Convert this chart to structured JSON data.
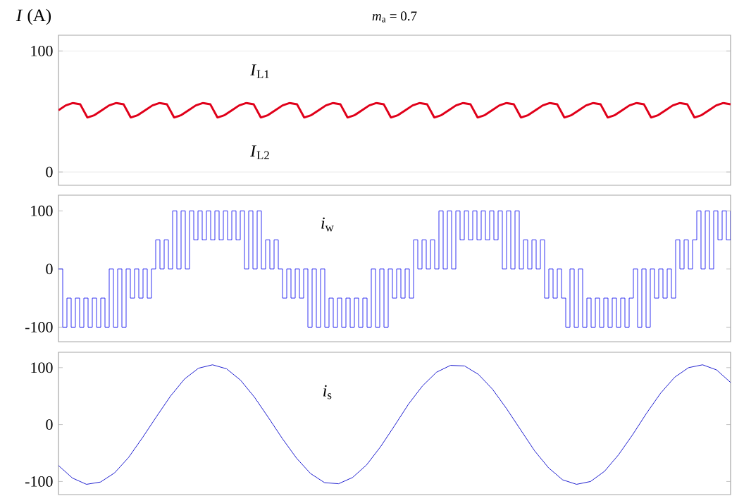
{
  "chart_data": [
    {
      "type": "line",
      "title": "*m*$_{a}$ = 0.7",
      "ylabel": "*I* (A)",
      "ylim": [
        -11,
        113
      ],
      "yticks": [
        0,
        100
      ],
      "grid": "y",
      "annotations": [
        "*I*$_{L1}$",
        "*I*$_{L2}$"
      ],
      "categories": [
        null,
        null,
        null,
        null,
        null,
        null,
        null,
        null,
        null,
        null,
        null,
        null,
        null,
        null,
        null,
        null,
        null,
        null,
        null,
        null,
        null,
        null,
        null,
        null,
        null,
        null,
        null,
        null,
        null,
        null,
        null,
        null,
        null,
        null,
        null,
        null,
        null,
        null,
        null,
        null,
        null,
        null,
        null,
        null,
        null,
        null,
        null,
        null,
        null,
        null,
        null,
        null,
        null,
        null,
        null,
        null,
        null,
        null,
        null,
        null,
        null,
        null,
        null,
        null,
        null,
        null,
        null,
        null,
        null,
        null,
        null,
        null,
        null,
        null,
        null,
        null,
        null,
        null,
        null,
        null,
        null,
        null,
        null,
        null,
        null,
        null,
        null,
        null,
        null,
        null,
        null,
        null,
        null,
        null
      ],
      "series": [
        {
          "color": "#e0001a",
          "values": [
            51,
            55,
            57,
            56,
            45,
            47,
            51,
            55,
            57,
            56,
            45,
            47,
            51,
            55,
            57,
            56,
            45,
            47,
            51,
            55,
            57,
            56,
            45,
            47,
            51,
            55,
            57,
            56,
            45,
            47,
            51,
            55,
            57,
            56,
            45,
            47,
            51,
            55,
            57,
            56,
            45,
            47,
            51,
            55,
            57,
            56,
            45,
            47,
            51,
            55,
            57,
            56,
            45,
            47,
            51,
            55,
            57,
            56,
            45,
            47,
            51,
            55,
            57,
            56,
            45,
            47,
            51,
            55,
            57,
            56,
            45,
            47,
            51,
            55,
            57,
            56,
            45,
            47,
            51,
            55,
            57,
            56,
            45,
            47,
            51,
            55,
            57,
            56,
            45,
            47,
            51,
            55,
            57,
            56
          ]
        }
      ]
    },
    {
      "type": "step",
      "ylim": [
        -125,
        127
      ],
      "yticks": [
        -100,
        0,
        100
      ],
      "annotations": [
        "*i*$_{w}$"
      ],
      "categories": [
        null,
        null,
        null,
        null,
        null,
        null,
        null,
        null,
        null,
        null,
        null,
        null,
        null,
        null,
        null,
        null,
        null,
        null,
        null,
        null,
        null,
        null,
        null,
        null,
        null,
        null,
        null,
        null,
        null,
        null,
        null,
        null,
        null,
        null,
        null,
        null,
        null,
        null,
        null,
        null,
        null,
        null,
        null,
        null,
        null,
        null,
        null,
        null,
        null,
        null,
        null,
        null,
        null,
        null,
        null,
        null,
        null,
        null,
        null,
        null,
        null,
        null,
        null,
        null,
        null,
        null,
        null,
        null,
        null,
        null,
        null,
        null,
        null,
        null,
        null,
        null,
        null,
        null,
        null,
        null,
        null,
        null,
        null,
        null,
        null,
        null,
        null,
        null,
        null,
        null,
        null,
        null,
        null,
        null,
        null,
        null,
        null,
        null,
        null,
        null,
        null,
        null,
        null,
        null,
        null,
        null,
        null,
        null,
        null,
        null,
        null,
        null,
        null,
        null,
        null,
        null,
        null,
        null,
        null,
        null,
        null,
        null,
        null,
        null,
        null,
        null,
        null,
        null,
        null,
        null,
        null,
        null,
        null,
        null,
        null,
        null,
        null,
        null,
        null,
        null,
        null,
        null,
        null,
        null,
        null,
        null,
        null,
        null,
        null,
        null,
        null,
        null,
        null,
        null,
        null,
        null,
        null,
        null,
        null,
        null
      ],
      "series": [
        {
          "color": "#0000ee",
          "values": [
            0,
            -100,
            -50,
            -100,
            -50,
            -100,
            -50,
            -100,
            -50,
            -100,
            -50,
            -100,
            0,
            -100,
            0,
            -100,
            0,
            -50,
            0,
            -50,
            0,
            -50,
            0,
            50,
            0,
            50,
            0,
            100,
            0,
            100,
            0,
            100,
            50,
            100,
            50,
            100,
            50,
            100,
            50,
            100,
            50,
            100,
            50,
            100,
            0,
            100,
            0,
            100,
            0,
            50,
            0,
            50,
            0,
            -50,
            0,
            -50,
            0,
            -50,
            0,
            -100,
            0,
            -100,
            0,
            -100,
            -50,
            -100,
            -50,
            -100,
            -50,
            -100,
            -50,
            -100,
            -50,
            -100,
            0,
            -100,
            0,
            -100,
            0,
            -50,
            0,
            -50,
            0,
            -50,
            50,
            0,
            50,
            0,
            50,
            0,
            100,
            0,
            100,
            0,
            100,
            50,
            100,
            50,
            100,
            50,
            100,
            50,
            100,
            50,
            100,
            0,
            100,
            0,
            100,
            0,
            50,
            0,
            50,
            0,
            50,
            -50,
            0,
            -50,
            0,
            -50,
            -100,
            0,
            -100,
            0,
            -100,
            -50,
            -100,
            -50,
            -100,
            -50,
            -100,
            -50,
            -100,
            -50,
            -100,
            -50,
            0,
            -100,
            0,
            -100,
            0,
            -50,
            0,
            -50,
            0,
            -50,
            50,
            0,
            50,
            0,
            50,
            100,
            0,
            100,
            0,
            100,
            50,
            100,
            50,
            100
          ]
        }
      ]
    },
    {
      "type": "line",
      "ylim": [
        -123,
        127
      ],
      "yticks": [
        -100,
        0,
        100
      ],
      "annotations": [
        "*i*$_{s}$"
      ],
      "categories": [
        null,
        null,
        null,
        null,
        null,
        null,
        null,
        null,
        null,
        null,
        null,
        null,
        null,
        null,
        null,
        null,
        null,
        null,
        null,
        null,
        null,
        null,
        null,
        null,
        null,
        null,
        null,
        null,
        null,
        null,
        null,
        null,
        null,
        null,
        null,
        null,
        null,
        null,
        null,
        null,
        null,
        null,
        null,
        null,
        null,
        null,
        null,
        null,
        null
      ],
      "series": [
        {
          "color": "#2020d0",
          "values": [
            -72,
            -94,
            -105,
            -101,
            -85,
            -58,
            -23,
            14,
            50,
            80,
            99,
            105,
            98,
            78,
            48,
            12,
            -25,
            -59,
            -86,
            -102,
            -104,
            -93,
            -71,
            -39,
            -2,
            36,
            68,
            92,
            104,
            103,
            88,
            62,
            28,
            -9,
            -46,
            -76,
            -97,
            -105,
            -100,
            -82,
            -53,
            -18,
            20,
            55,
            83,
            100,
            105,
            96,
            74
          ]
        }
      ]
    }
  ]
}
